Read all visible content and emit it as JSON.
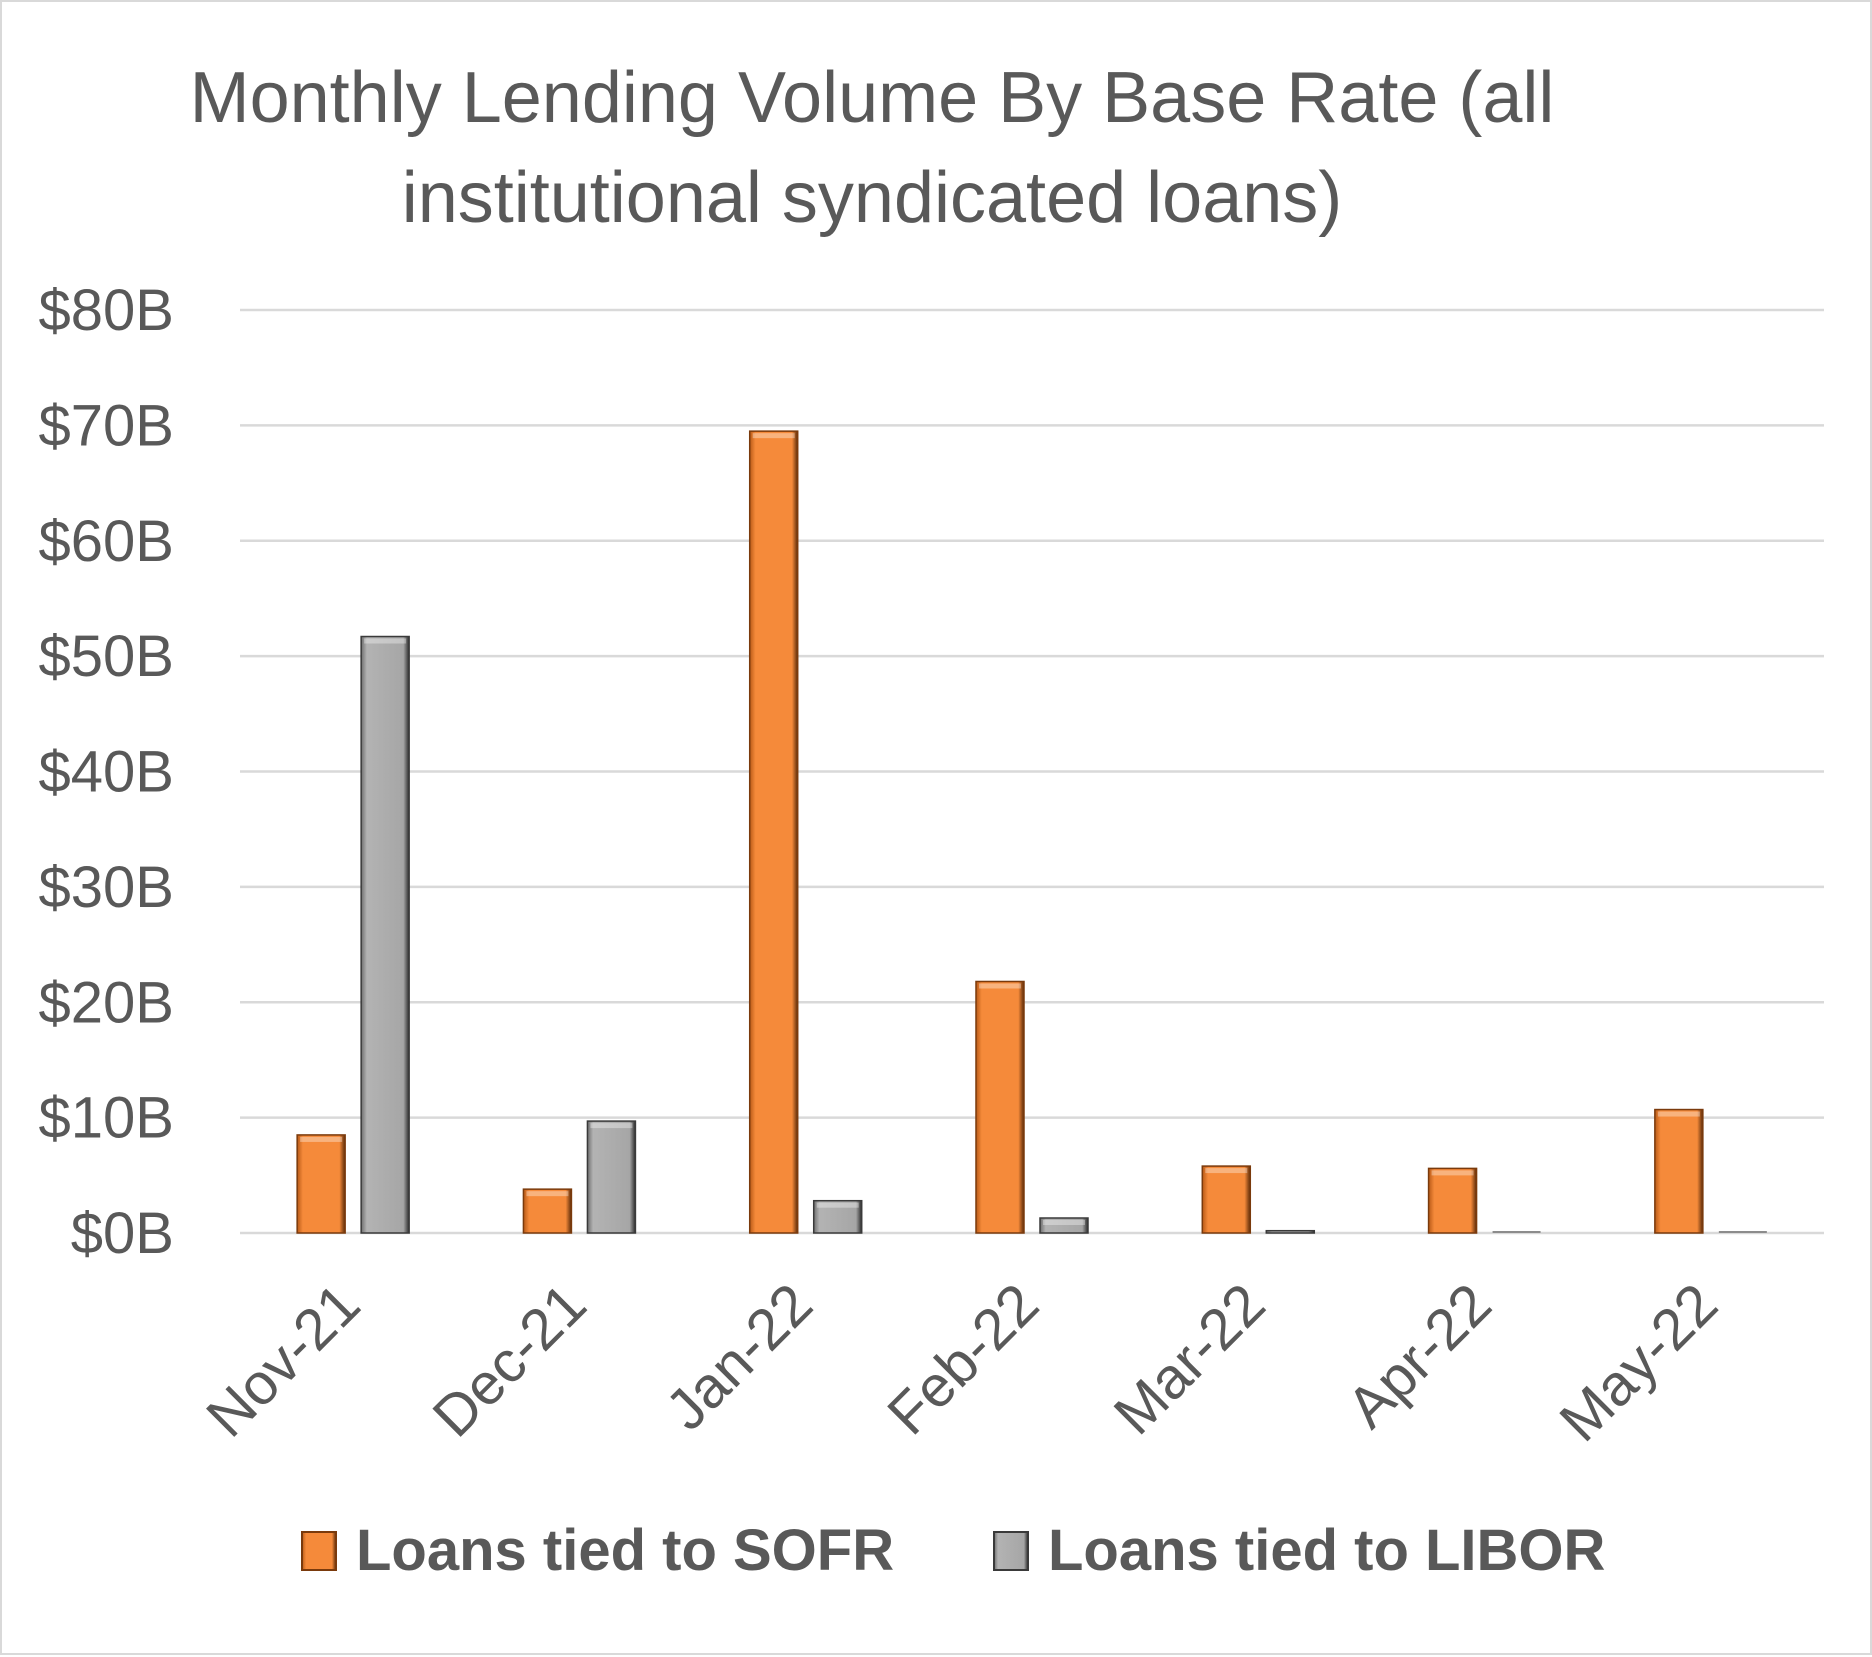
{
  "chart_data": {
    "type": "bar",
    "title_lines": [
      "Monthly Lending Volume By Base Rate (all",
      "institutional syndicated loans)"
    ],
    "categories": [
      "Nov-21",
      "Dec-21",
      "Jan-22",
      "Feb-22",
      "Mar-22",
      "Apr-22",
      "May-22"
    ],
    "series": [
      {
        "name": "Loans tied to SOFR",
        "color": "#f58a3a",
        "values": [
          8.5,
          3.8,
          69.5,
          21.8,
          5.8,
          5.6,
          10.7
        ]
      },
      {
        "name": "Loans tied to LIBOR",
        "color": "#a6a6a6",
        "values": [
          51.7,
          9.7,
          2.8,
          1.3,
          0.2,
          0,
          0
        ]
      }
    ],
    "ylim": [
      0,
      80
    ],
    "yticks": [
      0,
      10,
      20,
      30,
      40,
      50,
      60,
      70,
      80
    ],
    "ytick_labels": [
      "$0B",
      "$10B",
      "$20B",
      "$30B",
      "$40B",
      "$50B",
      "$60B",
      "$70B",
      "$80B"
    ],
    "grid": true,
    "legend": "bottom"
  }
}
